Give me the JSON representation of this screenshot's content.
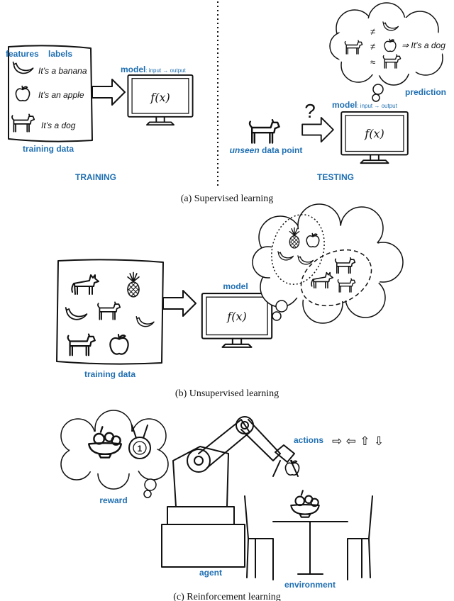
{
  "supervised": {
    "training": {
      "features_label": "features",
      "labels_label": "labels",
      "examples": [
        "It’s a banana",
        "It’s an apple",
        "It’s a dog"
      ],
      "data_label": "training data",
      "model_label": "model",
      "model_io": ": input → output",
      "function": "f(x)",
      "section_label": "TRAINING"
    },
    "testing": {
      "comparisons": [
        "≠",
        "≠",
        "≈"
      ],
      "conclusion": "⇒ It’s a dog",
      "prediction_label": "prediction",
      "question": "?",
      "model_label": "model",
      "model_io": ": input → output",
      "function": "f(x)",
      "unseen_word": "unseen",
      "data_point": " data point",
      "section_label": "TESTING"
    },
    "caption": "(a) Supervised learning"
  },
  "unsupervised": {
    "data_label": "training data",
    "model_label": "model",
    "function": "f(x)",
    "caption": "(b) Unsupervised learning"
  },
  "reinforcement": {
    "actions_label": "actions",
    "action_arrows": "⇨ ⇦ ⇧ ⇩",
    "medal_number": "1",
    "reward_label": "reward",
    "agent_label": "agent",
    "environment_label": "environment",
    "caption": "(c) Reinforcement learning"
  }
}
